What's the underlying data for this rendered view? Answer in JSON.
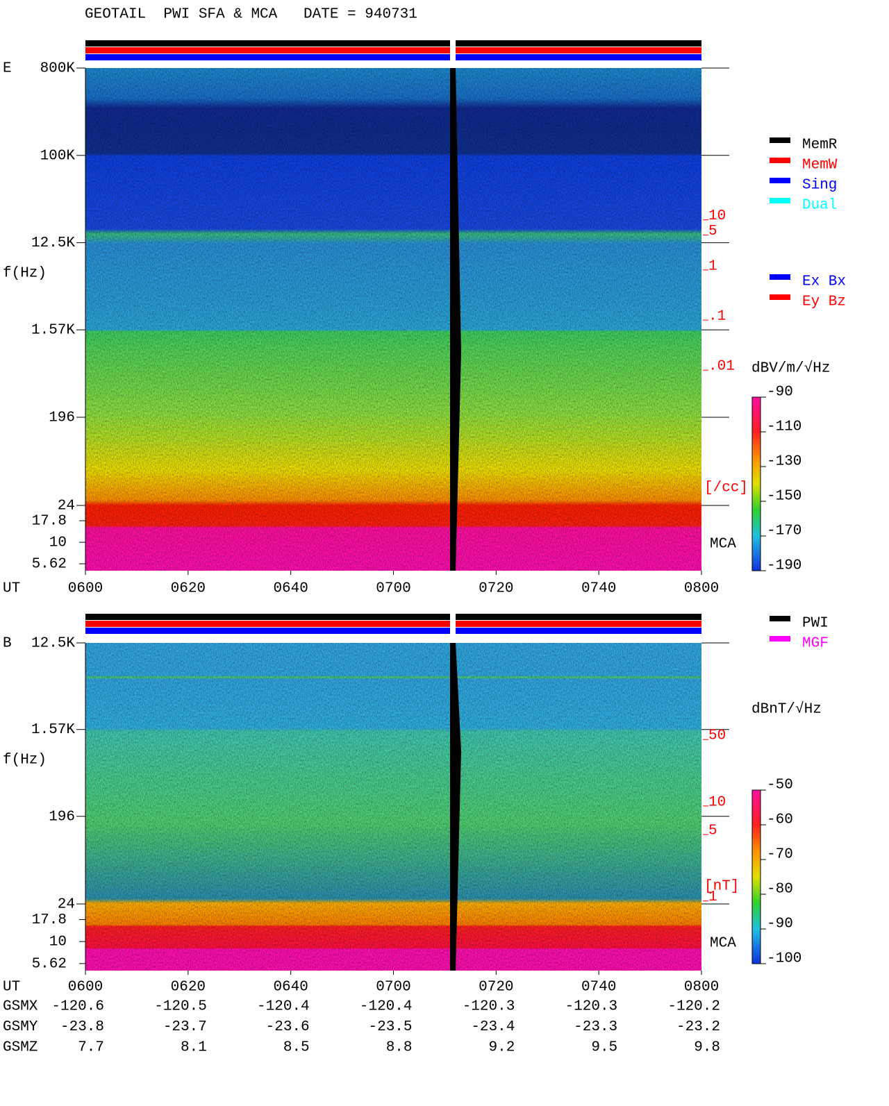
{
  "title": "GEOTAIL  PWI SFA & MCA   DATE = 940731",
  "chart_data": [
    {
      "type": "spectrogram",
      "panel_label": "E",
      "ylabel": "f(Hz)",
      "log_y": true,
      "ylim": [
        24,
        800000
      ],
      "yticks": [
        {
          "value": 800000,
          "label": "800K"
        },
        {
          "value": 100000,
          "label": "100K"
        },
        {
          "value": 12500,
          "label": "12.5K"
        },
        {
          "value": 1570,
          "label": "1.57K"
        },
        196,
        24
      ],
      "mca_label": "MCA",
      "mca_ylim": [
        4.67,
        26.8
      ],
      "mca_yticks": [
        17.8,
        10,
        5.62
      ],
      "xlabel": "UT",
      "xticks": [
        "0600",
        "0620",
        "0640",
        "0700",
        "0720",
        "0740",
        "0800"
      ],
      "y2_unit": "[/cc]",
      "y2lim": [
        2e-05,
        10700
      ],
      "y2ticks": [
        10,
        5,
        1,
        {
          "value": 0.1,
          "label": ".1"
        },
        {
          "value": 0.01,
          "label": ".01"
        }
      ],
      "colorbar": {
        "label": "dBV/m/√Hz",
        "lim": [
          -190,
          -90
        ],
        "ticks": [
          -90,
          -110,
          -130,
          -150,
          -170,
          -190
        ]
      },
      "legend": [
        {
          "name": "MemR",
          "color": "#000000"
        },
        {
          "name": "MemW",
          "color": "#ff0000"
        },
        {
          "name": "Sing",
          "color": "#0000ff"
        },
        {
          "name": "Dual",
          "color": "#00ffff"
        }
      ],
      "legend2": [
        {
          "name": "Ex Bx",
          "color": "#0000ff"
        },
        {
          "name": "Ey Bz",
          "color": "#ff0000"
        }
      ]
    },
    {
      "type": "spectrogram",
      "panel_label": "B",
      "ylabel": "f(Hz)",
      "log_y": true,
      "ylim": [
        24,
        12500
      ],
      "yticks": [
        {
          "value": 12500,
          "label": "12.5K"
        },
        {
          "value": 1570,
          "label": "1.57K"
        },
        196,
        24
      ],
      "mca_label": "MCA",
      "mca_ylim": [
        4.67,
        26.8
      ],
      "mca_yticks": [
        17.8,
        10,
        5.62
      ],
      "xlabel": "UT",
      "xticks": [
        "0600",
        "0620",
        "0640",
        "0700",
        "0720",
        "0740",
        "0800"
      ],
      "y2_unit": "[nT]",
      "y2lim": [
        0.93,
        520
      ],
      "y2ticks": [
        50,
        10,
        5,
        1
      ],
      "colorbar": {
        "label": "dBnT/√Hz",
        "lim": [
          -100,
          -50
        ],
        "ticks": [
          -50,
          -60,
          -70,
          -80,
          -90,
          -100
        ]
      },
      "legend": [
        {
          "name": "PWI",
          "color": "#000000"
        },
        {
          "name": "MGF",
          "color": "#ff00ff"
        }
      ]
    }
  ],
  "orbit": {
    "rows": [
      {
        "name": "GSMX",
        "values": [
          -120.6,
          -120.5,
          -120.4,
          -120.4,
          -120.3,
          -120.3,
          -120.2
        ]
      },
      {
        "name": "GSMY",
        "values": [
          -23.8,
          -23.7,
          -23.6,
          -23.5,
          -23.4,
          -23.3,
          -23.2
        ]
      },
      {
        "name": "GSMZ",
        "values": [
          7.7,
          8.1,
          8.5,
          8.8,
          9.2,
          9.5,
          9.8
        ]
      }
    ]
  }
}
